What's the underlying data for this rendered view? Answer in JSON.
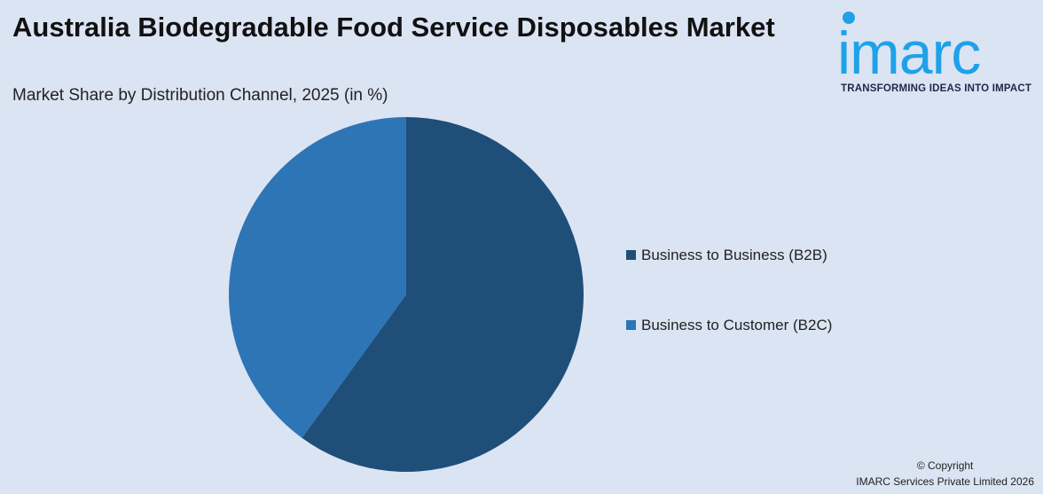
{
  "header": {
    "title": "Australia Biodegradable Food Service Disposables Market",
    "subtitle": "Market Share by Distribution Channel, 2025 (in %)"
  },
  "logo": {
    "wordmark": "imarc",
    "tagline": "TRANSFORMING IDEAS INTO IMPACT",
    "color": "#1fa1e8"
  },
  "chart_data": {
    "type": "pie",
    "title": "Australia Biodegradable Food Service Disposables Market",
    "subtitle": "Market Share by Distribution Channel, 2025 (in %)",
    "categories": [
      "Business to Business (B2B)",
      "Business to Customer (B2C)"
    ],
    "values": [
      60,
      40
    ],
    "colors": [
      "#1f4e79",
      "#2e75b6"
    ],
    "legend_position": "right",
    "start_angle": "12 o'clock, clockwise"
  },
  "footer": {
    "copyright_line1": "© Copyright",
    "copyright_line2": "IMARC Services Private Limited 2026"
  }
}
